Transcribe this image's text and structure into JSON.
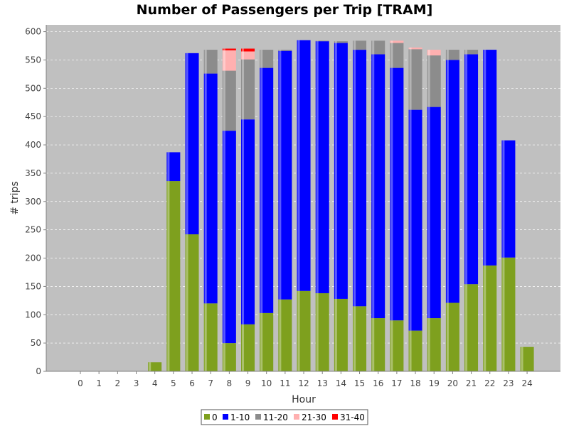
{
  "chart_data": {
    "type": "bar",
    "stacked": true,
    "title": "Number of Passengers per Trip [TRAM]",
    "xlabel": "Hour",
    "ylabel": "# trips",
    "ylim": [
      0,
      612
    ],
    "yticks": [
      0,
      50,
      100,
      150,
      200,
      250,
      300,
      350,
      400,
      450,
      500,
      550,
      600
    ],
    "categories": [
      "0",
      "1",
      "2",
      "3",
      "4",
      "5",
      "6",
      "7",
      "8",
      "9",
      "10",
      "11",
      "12",
      "13",
      "14",
      "15",
      "16",
      "17",
      "18",
      "19",
      "20",
      "21",
      "22",
      "23",
      "24"
    ],
    "grid": true,
    "legend_position": "bottom",
    "series": [
      {
        "name": "0",
        "color": "#7ea01e",
        "values": [
          0,
          0,
          0,
          0,
          16,
          336,
          242,
          120,
          50,
          83,
          103,
          127,
          142,
          138,
          128,
          115,
          94,
          90,
          72,
          94,
          121,
          154,
          187,
          201,
          43
        ]
      },
      {
        "name": "1-10",
        "color": "#0000ff",
        "values": [
          0,
          0,
          0,
          0,
          0,
          51,
          320,
          406,
          375,
          362,
          433,
          439,
          443,
          445,
          452,
          453,
          466,
          446,
          390,
          373,
          429,
          406,
          381,
          207,
          0
        ]
      },
      {
        "name": "11-20",
        "color": "#8c8c8c",
        "values": [
          0,
          0,
          0,
          0,
          0,
          0,
          0,
          42,
          106,
          106,
          32,
          2,
          0,
          1,
          3,
          16,
          24,
          44,
          107,
          91,
          18,
          8,
          0,
          0,
          0
        ]
      },
      {
        "name": "21-30",
        "color": "#ffb0b0",
        "values": [
          0,
          0,
          0,
          0,
          0,
          0,
          0,
          0,
          36,
          14,
          0,
          0,
          0,
          0,
          0,
          0,
          0,
          4,
          3,
          10,
          0,
          0,
          0,
          0,
          0
        ]
      },
      {
        "name": "31-40",
        "color": "#ff0000",
        "values": [
          0,
          0,
          0,
          0,
          0,
          0,
          0,
          0,
          3,
          5,
          0,
          0,
          0,
          0,
          0,
          0,
          0,
          0,
          0,
          0,
          0,
          0,
          0,
          0,
          0
        ]
      }
    ]
  },
  "colors": {
    "plot_background": "#c0c0c0",
    "gridline": "#ffffff"
  }
}
